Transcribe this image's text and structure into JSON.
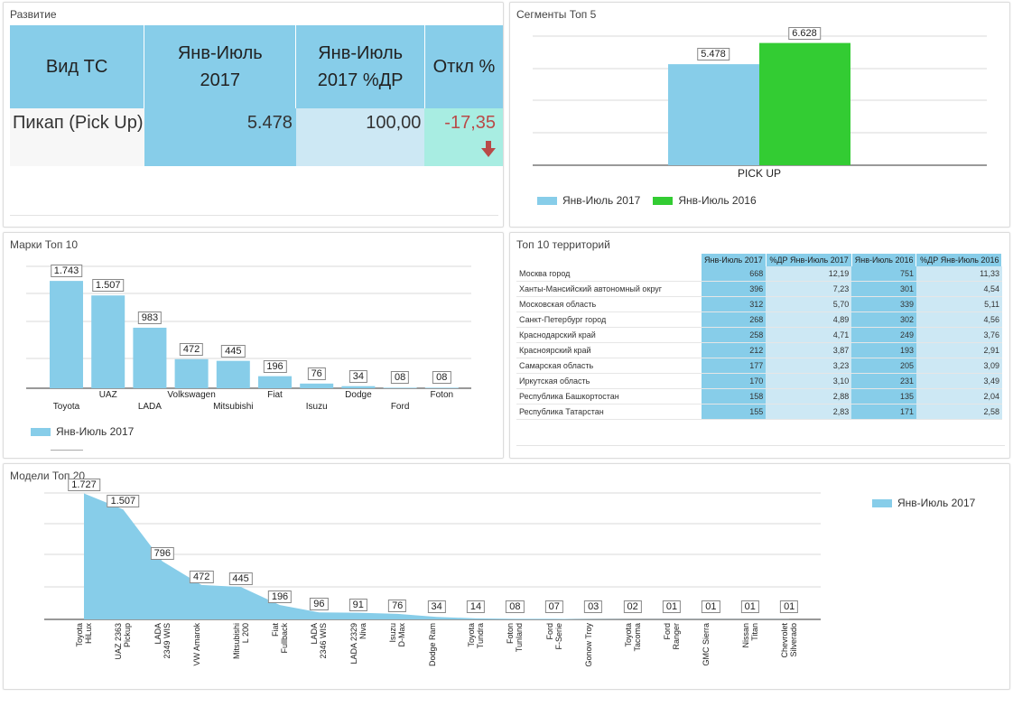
{
  "dev": {
    "title": "Развитие",
    "headers": [
      "Вид ТС",
      "Янв-Июль 2017",
      "Янв-Июль 2017 %ДР",
      "Откл %"
    ],
    "row": {
      "type": "Пикап (Pick Up)",
      "value": "5.478",
      "pct": "100,00",
      "deviation": "-17,35"
    },
    "colors": {
      "header": "#87cde9",
      "value_bg": "#87cde9",
      "pct_bg": "#cde8f4",
      "dev_bg": "#a8ede2",
      "negative": "#b94a48"
    }
  },
  "segments": {
    "title": "Сегменты Топ 5",
    "chart_data": {
      "type": "bar",
      "categories": [
        "PICK UP"
      ],
      "series": [
        {
          "name": "Янв-Июль 2017",
          "values": [
            5478
          ],
          "label": "5.478",
          "color": "#87cde9"
        },
        {
          "name": "Янв-Июль 2016",
          "values": [
            6628
          ],
          "label": "6.628",
          "color": "#33cc33"
        }
      ],
      "ylim": [
        0,
        7000
      ],
      "grid": true,
      "legend": "bottom-left"
    }
  },
  "brands": {
    "title": "Марки Топ 10",
    "chart_data": {
      "type": "bar",
      "categories": [
        "Toyota",
        "UAZ",
        "LADA",
        "Volkswagen",
        "Mitsubishi",
        "Fiat",
        "Isuzu",
        "Dodge",
        "Ford",
        "Foton"
      ],
      "series": [
        {
          "name": "Янв-Июль 2017",
          "values": [
            1743,
            1507,
            983,
            472,
            445,
            196,
            76,
            34,
            8,
            8
          ],
          "color": "#87cde9"
        }
      ],
      "labels": [
        "1.743",
        "1.507",
        "983",
        "472",
        "445",
        "196",
        "76",
        "34",
        "08",
        "08"
      ],
      "ylim": [
        0,
        2000
      ],
      "grid": true,
      "legend": "bottom-left"
    }
  },
  "territories": {
    "title": "Топ 10 территорий",
    "columns": [
      "",
      "Янв-Июль 2017",
      "%ДР Янв-Июль 2017",
      "Янв-Июль 2016",
      "%ДР Янв-Июль 2016"
    ],
    "rows": [
      [
        "Москва город",
        "668",
        "12,19",
        "751",
        "11,33"
      ],
      [
        "Ханты-Мансийский автономный округ",
        "396",
        "7,23",
        "301",
        "4,54"
      ],
      [
        "Московская область",
        "312",
        "5,70",
        "339",
        "5,11"
      ],
      [
        "Санкт-Петербург город",
        "268",
        "4,89",
        "302",
        "4,56"
      ],
      [
        "Краснодарский край",
        "258",
        "4,71",
        "249",
        "3,76"
      ],
      [
        "Красноярский край",
        "212",
        "3,87",
        "193",
        "2,91"
      ],
      [
        "Самарская область",
        "177",
        "3,23",
        "205",
        "3,09"
      ],
      [
        "Иркутская область",
        "170",
        "3,10",
        "231",
        "3,49"
      ],
      [
        "Республика Башкортостан",
        "158",
        "2,88",
        "135",
        "2,04"
      ],
      [
        "Республика Татарстан",
        "155",
        "2,83",
        "171",
        "2,58"
      ]
    ]
  },
  "models": {
    "title": "Модели Топ 20",
    "chart_data": {
      "type": "area",
      "categories": [
        "Toyota HiLux",
        "UAZ 2363 Pickup",
        "LADA 2349 WIS",
        "VW Amarok",
        "Mitsubishi L 200",
        "Fiat Fullback",
        "LADA 2346 WIS",
        "LADA 2329 Niva",
        "Isuzu D-Max",
        "Dodge Ram",
        "Toyota Tundra",
        "Foton Tunland",
        "Ford F-Serie",
        "Gonow Troy",
        "Toyota Tacoma",
        "Ford Ranger",
        "GMC Sierra",
        "Nissan Titan",
        "Chevrolet Silverado"
      ],
      "series": [
        {
          "name": "Янв-Июль 2017",
          "values": [
            1727,
            1507,
            796,
            472,
            445,
            196,
            96,
            91,
            76,
            34,
            14,
            8,
            7,
            3,
            2,
            1,
            1,
            1,
            1
          ],
          "color": "#87cde9"
        }
      ],
      "labels": [
        "1.727",
        "1.507",
        "796",
        "472",
        "445",
        "196",
        "96",
        "91",
        "76",
        "34",
        "14",
        "08",
        "07",
        "03",
        "02",
        "01",
        "01",
        "01",
        "01"
      ],
      "label_lines": [
        [
          "Toyota",
          "HiLux"
        ],
        [
          "UAZ 2363",
          "Pickup"
        ],
        [
          "LADA",
          "2349 WIS"
        ],
        [
          "VW Amarok"
        ],
        [
          "Mitsubishi",
          "L 200"
        ],
        [
          "Fiat",
          "Fullback"
        ],
        [
          "LADA",
          "2346 WIS"
        ],
        [
          "LADA 2329",
          "Niva"
        ],
        [
          "Isuzu",
          "D-Max"
        ],
        [
          "Dodge Ram"
        ],
        [
          "Toyota",
          "Tundra"
        ],
        [
          "Foton",
          "Tunland"
        ],
        [
          "Ford",
          "F-Serie"
        ],
        [
          "Gonow Troy"
        ],
        [
          "Toyota",
          "Tacoma"
        ],
        [
          "Ford",
          "Ranger"
        ],
        [
          "GMC Sierra"
        ],
        [
          "Nissan",
          "Titan"
        ],
        [
          "Chevrolet",
          "Silverado"
        ]
      ],
      "ylim": [
        0,
        2000
      ],
      "grid": true,
      "legend": "top-right"
    }
  }
}
